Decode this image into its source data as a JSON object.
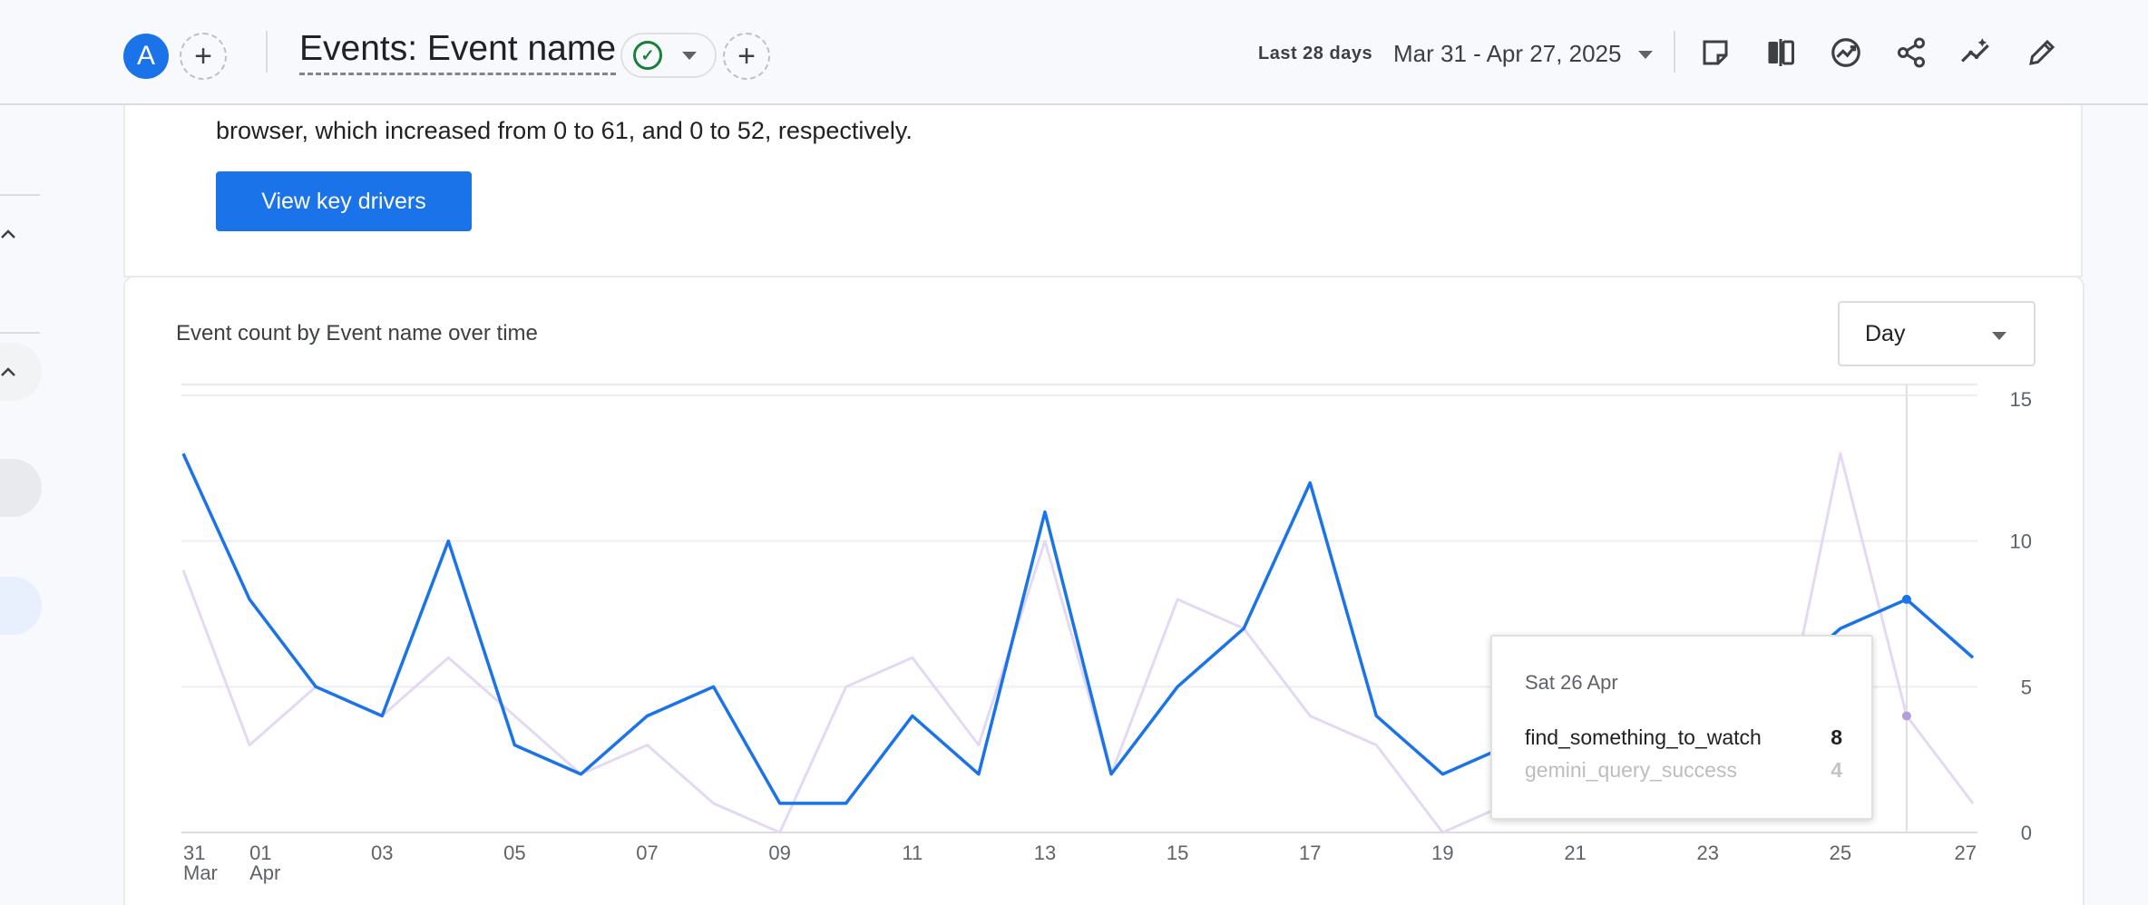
{
  "header": {
    "avatar_letter": "A",
    "title": "Events: Event name",
    "date_label": "Last 28 days",
    "date_range": "Mar 31 - Apr 27, 2025",
    "icons": [
      "note-icon",
      "compare-icon",
      "insights-icon",
      "share-icon",
      "explore-icon",
      "edit-icon"
    ]
  },
  "insight": {
    "text": "browser, which increased from 0 to 61, and 0 to 52, respectively.",
    "button_label": "View key drivers"
  },
  "chart_card": {
    "title": "Event count by Event name over time",
    "granularity": "Day"
  },
  "tooltip": {
    "date": "Sat 26 Apr",
    "rows": [
      {
        "name": "find_something_to_watch",
        "value": "8"
      },
      {
        "name": "gemini_query_success",
        "value": "4"
      }
    ]
  },
  "chart_data": {
    "type": "line",
    "title": "Event count by Event name over time",
    "x": [
      "Mar 31",
      "Apr 01",
      "Apr 02",
      "Apr 03",
      "Apr 04",
      "Apr 05",
      "Apr 06",
      "Apr 07",
      "Apr 08",
      "Apr 09",
      "Apr 10",
      "Apr 11",
      "Apr 12",
      "Apr 13",
      "Apr 14",
      "Apr 15",
      "Apr 16",
      "Apr 17",
      "Apr 18",
      "Apr 19",
      "Apr 20",
      "Apr 21",
      "Apr 22",
      "Apr 23",
      "Apr 24",
      "Apr 25",
      "Apr 26",
      "Apr 27"
    ],
    "x_tick_labels": [
      {
        "index": 0,
        "line1": "31",
        "line2": "Mar"
      },
      {
        "index": 1,
        "line1": "01",
        "line2": "Apr"
      },
      {
        "index": 3,
        "line1": "03",
        "line2": ""
      },
      {
        "index": 5,
        "line1": "05",
        "line2": ""
      },
      {
        "index": 7,
        "line1": "07",
        "line2": ""
      },
      {
        "index": 9,
        "line1": "09",
        "line2": ""
      },
      {
        "index": 11,
        "line1": "11",
        "line2": ""
      },
      {
        "index": 13,
        "line1": "13",
        "line2": ""
      },
      {
        "index": 15,
        "line1": "15",
        "line2": ""
      },
      {
        "index": 17,
        "line1": "17",
        "line2": ""
      },
      {
        "index": 19,
        "line1": "19",
        "line2": ""
      },
      {
        "index": 21,
        "line1": "21",
        "line2": ""
      },
      {
        "index": 23,
        "line1": "23",
        "line2": ""
      },
      {
        "index": 25,
        "line1": "25",
        "line2": ""
      },
      {
        "index": 27,
        "line1": "27",
        "line2": ""
      }
    ],
    "y_ticks": [
      0,
      5,
      10,
      15
    ],
    "ylim": [
      0,
      15
    ],
    "y_axis_side": "right",
    "grid": true,
    "series": [
      {
        "name": "find_something_to_watch",
        "color": "#1a73e8",
        "values": [
          13,
          8,
          5,
          4,
          10,
          3,
          2,
          4,
          5,
          1,
          1,
          4,
          2,
          11,
          2,
          5,
          7,
          12,
          4,
          2,
          3,
          4,
          3,
          2,
          5,
          7,
          8,
          6
        ]
      },
      {
        "name": "gemini_query_success",
        "color": "#e4d9f4",
        "values": [
          9,
          3,
          5,
          4,
          6,
          4,
          2,
          3,
          1,
          0,
          5,
          6,
          3,
          10,
          2,
          8,
          7,
          4,
          3,
          0,
          1,
          4,
          2,
          1,
          2,
          13,
          4,
          1
        ]
      }
    ],
    "highlight_index": 26
  }
}
